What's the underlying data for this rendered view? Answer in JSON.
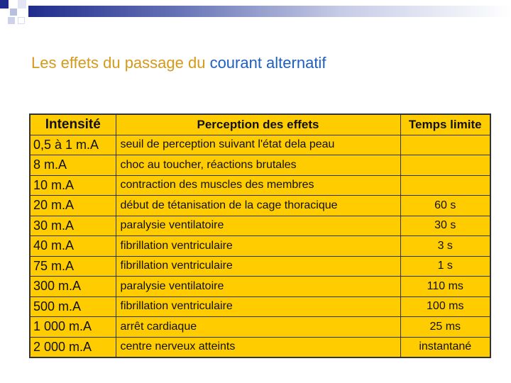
{
  "slide": {
    "title_part1": "Les effets du passage du ",
    "title_part2": "courant alternatif",
    "title_color1": "#d49a1c",
    "title_color2": "#1f5fbf"
  },
  "table": {
    "header": {
      "intensity": "Intensité",
      "perception": "Perception des effets",
      "time_limit": "Temps limite"
    },
    "rows": [
      {
        "intensity": "0,5 à 1 m.A",
        "effect": "seuil de perception suivant l'état dela peau",
        "time": ""
      },
      {
        "intensity": "8 m.A",
        "effect": "choc au toucher, réactions brutales",
        "time": ""
      },
      {
        "intensity": "10 m.A",
        "effect": "contraction des muscles des membres",
        "time": ""
      },
      {
        "intensity": "20 m.A",
        "effect": "début de tétanisation de la cage thoracique",
        "time": "60 s"
      },
      {
        "intensity": "30 m.A",
        "effect": "paralysie ventilatoire",
        "time": "30 s"
      },
      {
        "intensity": "40 m.A",
        "effect": "fibrillation  ventriculaire",
        "time": "3 s"
      },
      {
        "intensity": "75 m.A",
        "effect": "fibrillation  ventriculaire",
        "time": "1 s"
      },
      {
        "intensity": "300 m.A",
        "effect": "paralysie ventilatoire",
        "time": "110 ms"
      },
      {
        "intensity": "500 m.A",
        "effect": "fibrillation  ventriculaire",
        "time": "100 ms"
      },
      {
        "intensity": "1 000 m.A",
        "effect": "arrêt cardiaque",
        "time": "25 ms"
      },
      {
        "intensity": "2 000 m.A",
        "effect": "centre nerveux atteints",
        "time": "instantané"
      }
    ],
    "background_color": "#ffcc00"
  }
}
